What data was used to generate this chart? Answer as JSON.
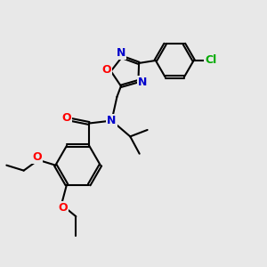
{
  "background_color": "#e8e8e8",
  "figsize": [
    3.0,
    3.0
  ],
  "dpi": 100,
  "bond_color": "#000000",
  "bond_width": 1.5,
  "atom_colors": {
    "O": "#ff0000",
    "N": "#0000cc",
    "Cl": "#00aa00",
    "C": "#000000"
  },
  "font_size": 9.0
}
